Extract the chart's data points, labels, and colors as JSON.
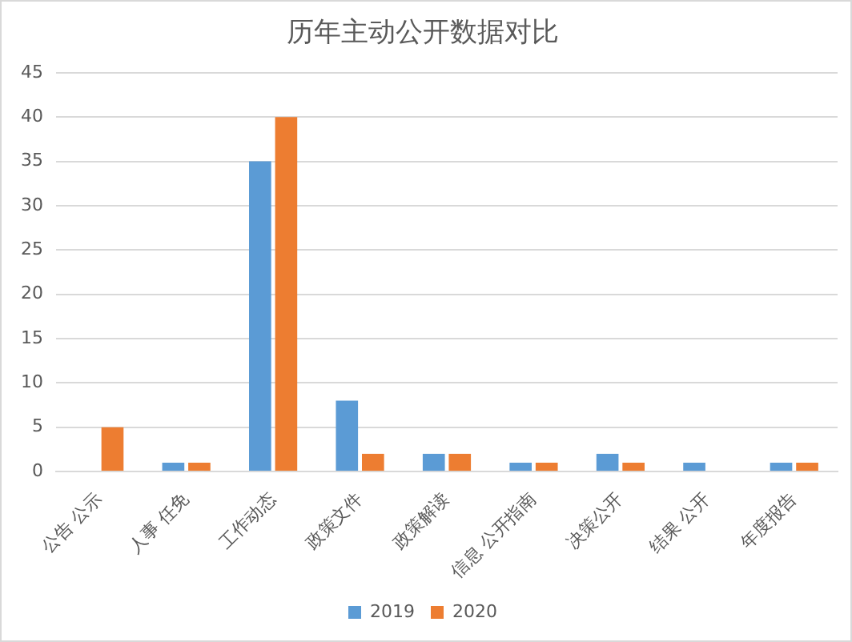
{
  "chart_data": {
    "type": "bar",
    "title": "历年主动公开数据对比",
    "categories": [
      "公告 公示",
      "人事 任免",
      "工作动态",
      "政策文件",
      "政策解读",
      "信息 公开指南",
      "决策公开",
      "结果 公开",
      "年度报告"
    ],
    "series": [
      {
        "name": "2019",
        "color": "#5b9bd5",
        "values": [
          0,
          1,
          35,
          8,
          2,
          1,
          2,
          1,
          1
        ]
      },
      {
        "name": "2020",
        "color": "#ed7d31",
        "values": [
          5,
          1,
          40,
          2,
          2,
          1,
          1,
          0,
          1
        ]
      }
    ],
    "ylim": [
      0,
      45
    ],
    "yticks": [
      0,
      5,
      10,
      15,
      20,
      25,
      30,
      35,
      40,
      45
    ],
    "grid": "y",
    "legend": "bottom"
  }
}
